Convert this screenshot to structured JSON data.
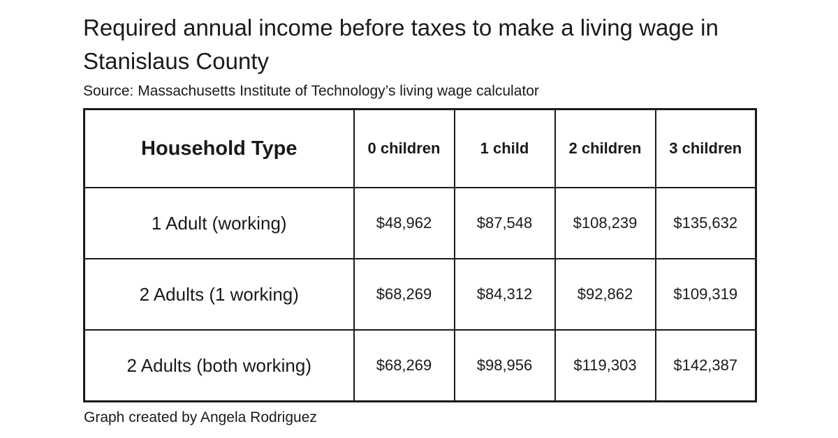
{
  "title": "Required annual income before taxes to make a living wage in Stanislaus County",
  "source": "Source: Massachusetts Institute of Technology’s living wage calculator",
  "credit": "Graph created by Angela Rodriguez",
  "chart_data": {
    "type": "table",
    "columns": [
      "Household Type",
      "0 children",
      "1 child",
      "2 children",
      "3 children"
    ],
    "rows": [
      {
        "label": "1 Adult (working)",
        "values": [
          "$48,962",
          "$87,548",
          "$108,239",
          "$135,632"
        ]
      },
      {
        "label": "2 Adults (1 working)",
        "values": [
          "$68,269",
          "$84,312",
          "$92,862",
          "$109,319"
        ]
      },
      {
        "label": "2 Adults (both working)",
        "values": [
          "$68,269",
          "$98,956",
          "$119,303",
          "$142,387"
        ]
      }
    ]
  }
}
